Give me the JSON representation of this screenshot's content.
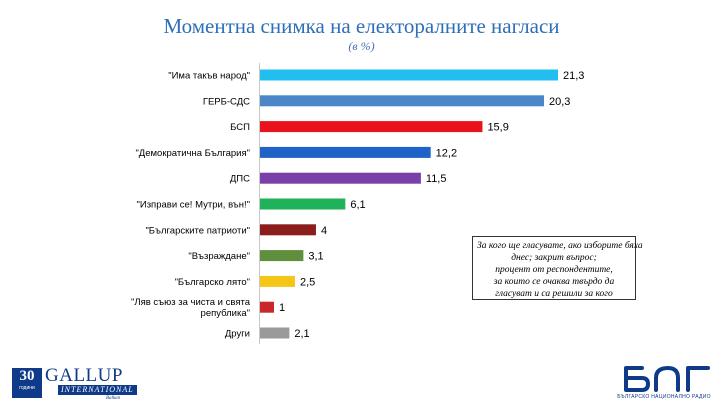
{
  "chart_data": {
    "type": "bar",
    "orientation": "horizontal",
    "title": "Моментна снимка на електоралните нагласи",
    "subtitle": "(в %)",
    "categories": [
      [
        "\"Има такъв народ\""
      ],
      [
        "ГЕРБ-СДС"
      ],
      [
        "БСП"
      ],
      [
        "\"Демократична България\""
      ],
      [
        "ДПС"
      ],
      [
        "\"Изправи се! Мутри, вън!\""
      ],
      [
        "\"Българските патриоти\""
      ],
      [
        "\"Възраждане\""
      ],
      [
        "\"Българско лято\""
      ],
      [
        "\"Ляв съюз за чиста и свята",
        "република\""
      ],
      [
        "Други"
      ]
    ],
    "values": [
      21.3,
      20.3,
      15.9,
      12.2,
      11.5,
      6.1,
      4,
      3.1,
      2.5,
      1,
      2.1
    ],
    "value_labels": [
      "21,3",
      "20,3",
      "15,9",
      "12,2",
      "11,5",
      "6,1",
      "4",
      "3,1",
      "2,5",
      "1",
      "2,1"
    ],
    "colors": [
      "#21bff0",
      "#4a86c8",
      "#e8131b",
      "#1f63c8",
      "#7a3fa8",
      "#1fb25a",
      "#8b1d1d",
      "#5f8f3c",
      "#f5c518",
      "#c8282a",
      "#9a9a9a"
    ],
    "xlim": [
      0,
      22
    ],
    "grid": false,
    "legend": "none"
  },
  "note": {
    "lines": [
      "За кого ще гласувате, ако изборите бяха",
      "днес; закрит въпрос;",
      "процент от респондентите,",
      "за които се очаква твърдо да",
      "гласуват и са решили за кого"
    ]
  },
  "gallup_logo": {
    "years": "30",
    "years_word": "години",
    "name": "GALLUP",
    "international": "INTERNATIONAL",
    "region": "Balkan"
  },
  "bnr_logo": {
    "caption": "БЪЛГАРСКО НАЦИОНАЛНО РАДИО",
    "color": "#0f3a8a"
  }
}
